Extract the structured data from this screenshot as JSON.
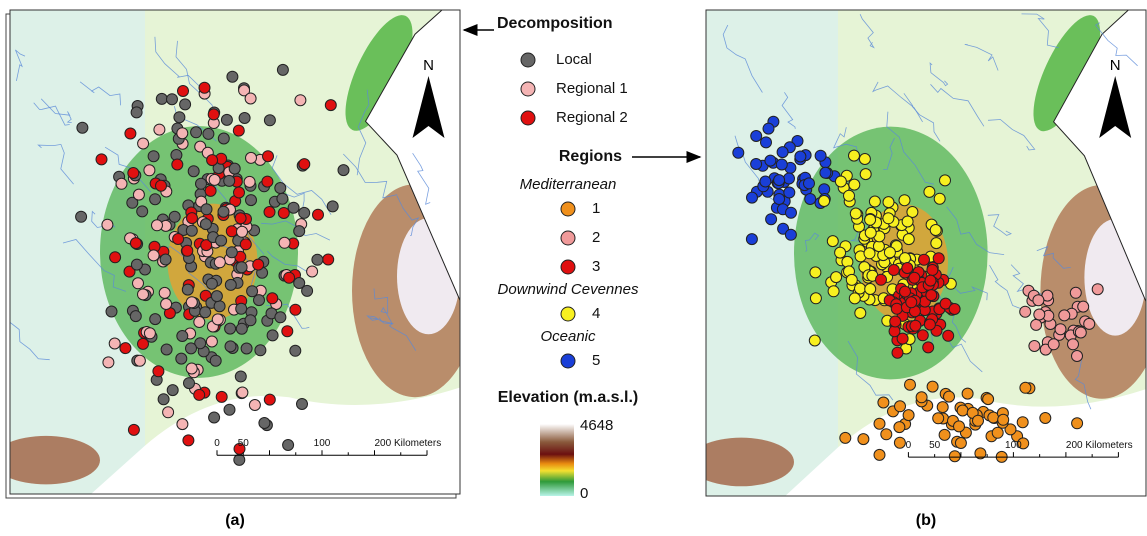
{
  "panels": [
    {
      "label": "(a)",
      "north": "N",
      "scale_bar": {
        "ticks": [
          "0",
          "50",
          "100"
        ],
        "end": "200 Kilometers"
      }
    },
    {
      "label": "(b)",
      "north": "N",
      "scale_bar": {
        "ticks": [
          "0",
          "50",
          "100"
        ],
        "end": "200 Kilometers"
      }
    }
  ],
  "legend": {
    "decomposition": {
      "title": "Decomposition",
      "items": [
        {
          "label": "Local",
          "color": "#666666"
        },
        {
          "label": "Regional 1",
          "color": "#f4b4b4"
        },
        {
          "label": "Regional 2",
          "color": "#e01010"
        }
      ]
    },
    "regions": {
      "title": "Regions",
      "groups": [
        {
          "name": "Mediterranean",
          "items": [
            {
              "label": "1",
              "color": "#f0901c"
            },
            {
              "label": "2",
              "color": "#f09a9a"
            },
            {
              "label": "3",
              "color": "#e01010"
            }
          ]
        },
        {
          "name": "Downwind Cevennes",
          "items": [
            {
              "label": "4",
              "color": "#f8f020"
            }
          ]
        },
        {
          "name": "Oceanic",
          "items": [
            {
              "label": "5",
              "color": "#1a3fd8"
            }
          ]
        }
      ]
    },
    "elevation": {
      "title": "Elevation (m.a.s.l.)",
      "max": 4648,
      "min": 0
    }
  }
}
